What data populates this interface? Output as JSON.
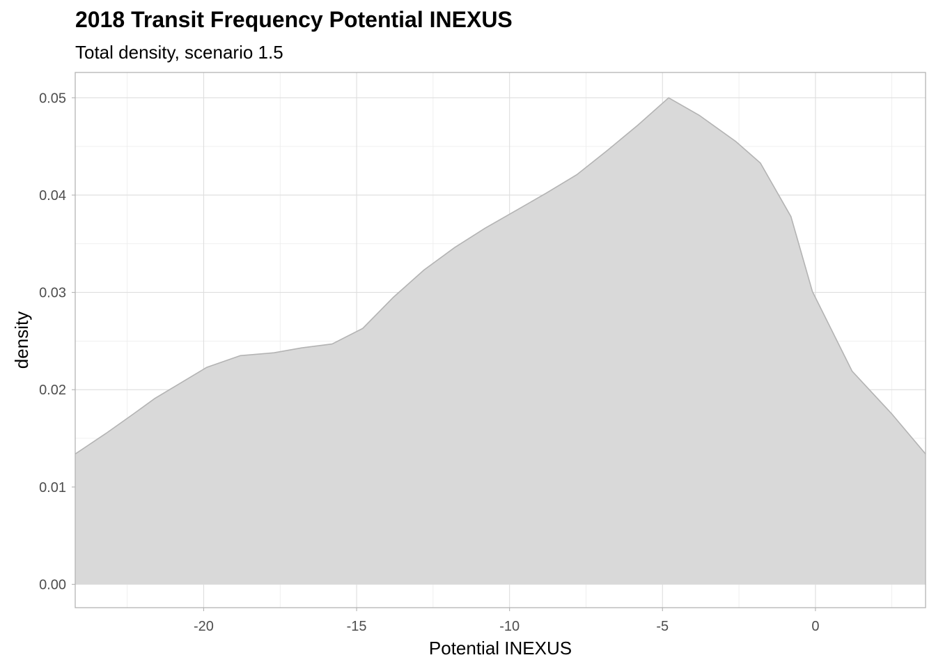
{
  "chart_data": {
    "type": "area",
    "title": "2018 Transit Frequency Potential INEXUS",
    "subtitle": "Total density, scenario 1.5",
    "xlabel": "Potential INEXUS",
    "ylabel": "density",
    "xlim": [
      -24.2,
      3.6
    ],
    "ylim": [
      -0.0024,
      0.0526
    ],
    "x_ticks": [
      -20,
      -15,
      -10,
      -5,
      0
    ],
    "x_tick_labels": [
      "-20",
      "-15",
      "-10",
      "-5",
      "0"
    ],
    "y_ticks": [
      0.0,
      0.01,
      0.02,
      0.03,
      0.04,
      0.05
    ],
    "y_tick_labels": [
      "0.00",
      "0.01",
      "0.02",
      "0.03",
      "0.04",
      "0.05"
    ],
    "grid": true,
    "fill_color": "#d9d9d9",
    "line_color": "#b3b3b3",
    "x": [
      -24.2,
      -23.2,
      -22.3,
      -21.6,
      -20.8,
      -19.9,
      -18.8,
      -17.7,
      -16.8,
      -15.8,
      -14.8,
      -13.8,
      -12.8,
      -11.8,
      -10.8,
      -9.8,
      -8.8,
      -7.8,
      -6.8,
      -5.8,
      -4.8,
      -3.8,
      -2.6,
      -1.8,
      -0.8,
      -0.1,
      1.2,
      2.5,
      3.6
    ],
    "y": [
      0.0134,
      0.0155,
      0.0175,
      0.0191,
      0.0206,
      0.0223,
      0.0235,
      0.0238,
      0.0243,
      0.0247,
      0.0263,
      0.0295,
      0.0323,
      0.0346,
      0.0366,
      0.0384,
      0.0402,
      0.0421,
      0.0446,
      0.0472,
      0.05,
      0.0482,
      0.0455,
      0.0433,
      0.0378,
      0.0301,
      0.0219,
      0.0175,
      0.0134
    ]
  }
}
